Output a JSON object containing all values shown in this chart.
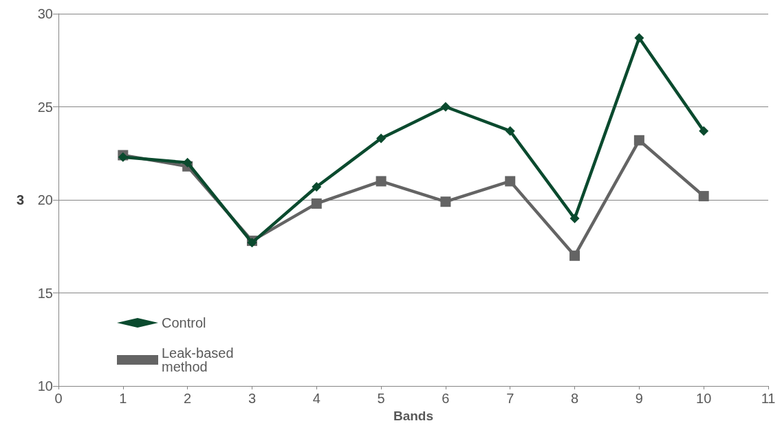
{
  "chart_data": {
    "type": "line",
    "xlabel": "Bands",
    "ylabel": "3",
    "x": [
      1,
      2,
      3,
      4,
      5,
      6,
      7,
      8,
      9,
      10
    ],
    "series": [
      {
        "name": "Control",
        "color": "#0a4a2e",
        "marker": "diamond",
        "values": [
          22.3,
          22.0,
          17.7,
          20.7,
          23.3,
          25.0,
          23.7,
          19.0,
          28.7,
          23.7
        ]
      },
      {
        "name": "Leak-based method",
        "color": "#646464",
        "marker": "square",
        "values": [
          22.4,
          21.8,
          17.8,
          19.8,
          21.0,
          19.9,
          21.0,
          17.0,
          23.2,
          20.2
        ]
      }
    ],
    "xlim": [
      0,
      11
    ],
    "xticks": [
      0,
      1,
      2,
      3,
      4,
      5,
      6,
      7,
      8,
      9,
      10,
      11
    ],
    "ylim": [
      10,
      30
    ],
    "yticks": [
      10,
      15,
      20,
      25,
      30
    ],
    "grid": "y",
    "legend": "bottom left",
    "line_style": "solid"
  }
}
